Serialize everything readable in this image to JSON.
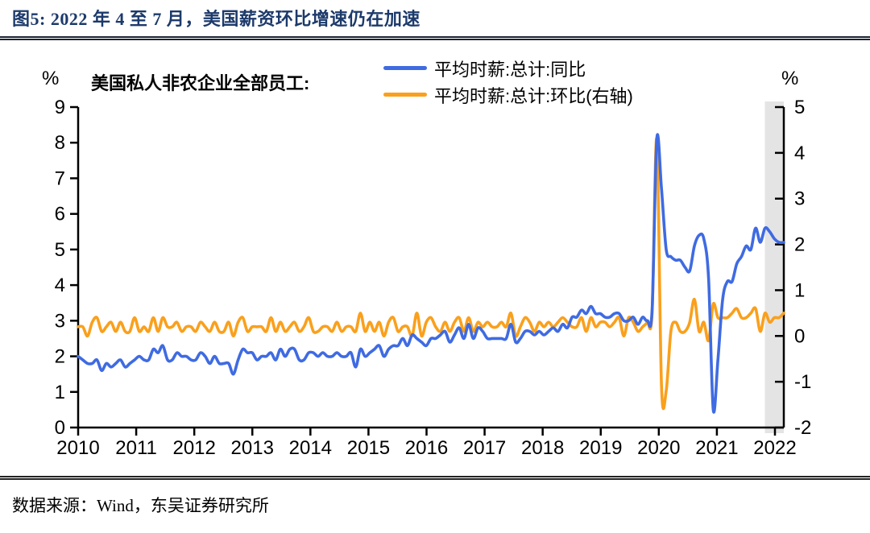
{
  "title": "图5: 2022 年 4 至 7 月，美国薪资环比增速仍在加速",
  "source": "数据来源：Wind，东吴证券研究所",
  "chart": {
    "subtitle": "美国私人非农企业全部员工:",
    "left_unit": "%",
    "right_unit": "%"
  },
  "chart_data": {
    "type": "line",
    "title": "美国私人非农企业全部员工:",
    "frequency": "monthly",
    "x_start": "2010-01",
    "x_end": "2022-07",
    "x_tick_labels": [
      "2010",
      "2011",
      "2012",
      "2013",
      "2014",
      "2015",
      "2016",
      "2017",
      "2018",
      "2019",
      "2020",
      "2021",
      "2022"
    ],
    "left_axis": {
      "label": "%",
      "min": 0,
      "max": 9,
      "ticks": [
        0,
        1,
        2,
        3,
        4,
        5,
        6,
        7,
        8,
        9
      ]
    },
    "right_axis": {
      "label": "%",
      "min": -2,
      "max": 5,
      "ticks": [
        -2,
        -1,
        0,
        1,
        2,
        3,
        4,
        5
      ]
    },
    "grid": false,
    "legend_position": "top",
    "highlight_band": {
      "from": "2022-04",
      "to": "2022-07",
      "color": "#E4E4E4",
      "meaning": "2022年4至7月"
    },
    "series": [
      {
        "name": "平均时薪:总计:环比(右轴)",
        "axis": "right",
        "color": "#FAA01C",
        "values": [
          0.2,
          0.2,
          0.0,
          0.3,
          0.4,
          0.1,
          0.2,
          0.3,
          0.1,
          0.3,
          0.1,
          0.1,
          0.4,
          0.1,
          0.2,
          0.1,
          0.4,
          0.1,
          0.4,
          0.2,
          0.2,
          0.3,
          0.1,
          0.2,
          0.2,
          0.1,
          0.3,
          0.2,
          0.1,
          0.3,
          0.1,
          0.1,
          0.3,
          0.0,
          0.3,
          0.4,
          0.1,
          0.2,
          0.2,
          0.2,
          0.1,
          0.4,
          0.1,
          0.3,
          0.1,
          0.2,
          0.3,
          0.1,
          0.2,
          0.4,
          0.1,
          0.1,
          0.2,
          0.2,
          0.1,
          0.3,
          0.1,
          0.2,
          0.2,
          0.1,
          0.5,
          0.1,
          0.3,
          0.1,
          0.3,
          0.0,
          0.3,
          0.4,
          0.1,
          0.2,
          0.2,
          0.0,
          0.5,
          0.0,
          0.3,
          0.4,
          0.2,
          0.1,
          0.3,
          0.1,
          0.3,
          0.4,
          0.1,
          0.4,
          0.1,
          0.3,
          0.2,
          0.3,
          0.2,
          0.2,
          0.3,
          0.2,
          0.5,
          0.0,
          0.2,
          0.4,
          0.3,
          0.1,
          0.3,
          0.2,
          0.3,
          0.2,
          0.3,
          0.4,
          0.3,
          0.2,
          0.2,
          0.4,
          0.1,
          0.4,
          0.2,
          0.3,
          0.3,
          0.2,
          0.3,
          0.4,
          0.0,
          0.4,
          0.3,
          0.1,
          0.2,
          0.3,
          0.5,
          4.3,
          -1.1,
          -1.2,
          0.1,
          0.3,
          0.1,
          0.1,
          0.3,
          0.8,
          0.1,
          0.3,
          -0.1,
          0.7,
          0.4,
          0.4,
          0.4,
          0.5,
          0.6,
          0.4,
          0.4,
          0.5,
          0.6,
          0.1,
          0.5,
          0.3,
          0.4,
          0.4,
          0.5
        ]
      },
      {
        "name": "平均时薪:总计:同比",
        "axis": "left",
        "color": "#3F6BE2",
        "values": [
          2.0,
          1.9,
          1.8,
          1.8,
          1.9,
          1.6,
          1.8,
          1.7,
          1.8,
          1.9,
          1.7,
          1.8,
          1.9,
          2.0,
          1.9,
          1.9,
          2.2,
          2.1,
          2.3,
          1.9,
          1.9,
          2.1,
          2.0,
          2.0,
          1.9,
          1.9,
          2.1,
          2.0,
          1.8,
          2.0,
          1.8,
          1.8,
          1.8,
          1.5,
          1.9,
          2.2,
          2.1,
          2.1,
          1.9,
          2.0,
          2.0,
          2.1,
          1.9,
          2.2,
          2.0,
          2.2,
          2.2,
          1.9,
          1.9,
          2.1,
          2.1,
          2.0,
          2.1,
          2.0,
          2.0,
          2.1,
          2.0,
          2.0,
          2.1,
          1.7,
          2.2,
          2.0,
          2.1,
          2.2,
          2.3,
          2.0,
          2.2,
          2.3,
          2.3,
          2.5,
          2.3,
          2.6,
          2.5,
          2.4,
          2.3,
          2.5,
          2.5,
          2.6,
          2.7,
          2.4,
          2.6,
          2.8,
          2.5,
          2.9,
          2.5,
          2.8,
          2.7,
          2.5,
          2.5,
          2.5,
          2.5,
          2.5,
          2.9,
          2.4,
          2.5,
          2.7,
          2.7,
          2.6,
          2.7,
          2.6,
          2.7,
          2.8,
          2.7,
          2.9,
          2.8,
          3.1,
          3.1,
          3.3,
          3.2,
          3.4,
          3.2,
          3.2,
          3.1,
          3.1,
          3.2,
          3.2,
          3.0,
          3.0,
          3.1,
          2.9,
          3.1,
          3.0,
          3.3,
          8.1,
          6.7,
          5.0,
          4.8,
          4.7,
          4.7,
          4.5,
          4.4,
          5.1,
          5.4,
          5.3,
          4.2,
          0.5,
          1.9,
          3.6,
          4.1,
          4.1,
          4.6,
          4.8,
          5.1,
          5.0,
          5.6,
          5.2,
          5.6,
          5.5,
          5.3,
          5.2,
          5.2
        ]
      }
    ],
    "legend_order": [
      "平均时薪:总计:同比",
      "平均时薪:总计:环比(右轴)"
    ]
  }
}
